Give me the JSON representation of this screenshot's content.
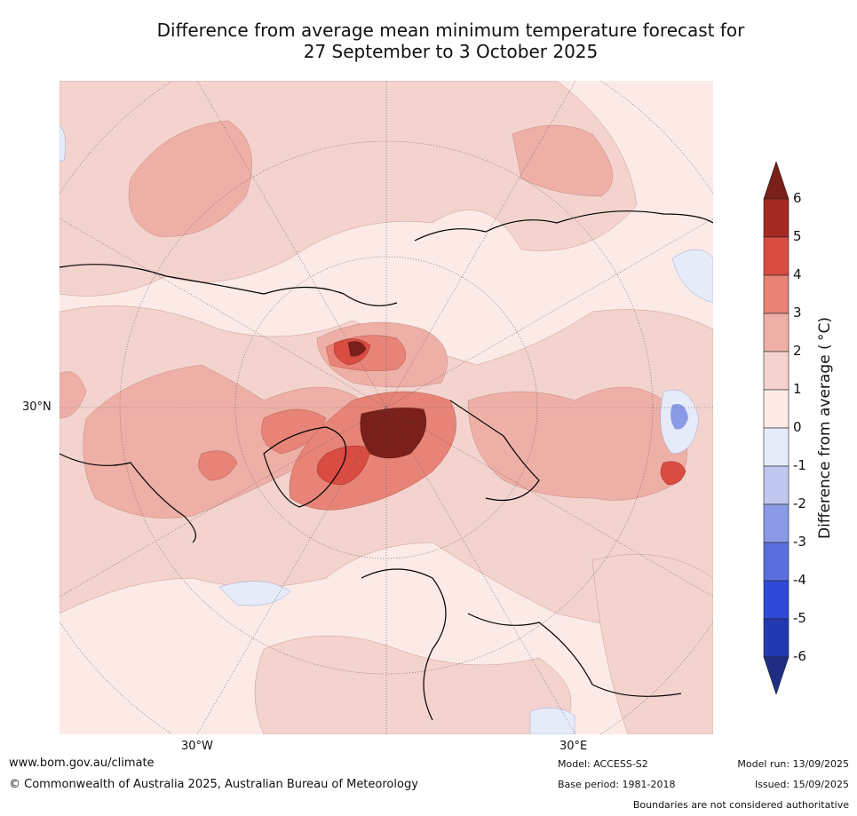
{
  "title_line1": "Difference from average mean minimum temperature forecast for",
  "title_line2": "27 September to 3 October 2025",
  "map": {
    "lat_label": "30°N",
    "lon_labels": [
      "30°W",
      "30°E"
    ]
  },
  "colorbar": {
    "title": "Difference from average ( °C)",
    "ticks": [
      "6",
      "5",
      "4",
      "3",
      "2",
      "1",
      "0",
      "-1",
      "-2",
      "-3",
      "-4",
      "-5",
      "-6"
    ],
    "colors": [
      "#a52a24",
      "#d84c42",
      "#e78477",
      "#eeb0a6",
      "#f4d3ce",
      "#fbeae6",
      "#e6ebfa",
      "#c0c8f0",
      "#8b9ae6",
      "#5a6fdd",
      "#2e4ad6",
      "#233ab0"
    ],
    "extend_high": "#7a1f1a",
    "extend_low": "#1f2e85"
  },
  "footer": {
    "url": "www.bom.gov.au/climate",
    "copyright": "© Commonwealth of Australia 2025, Australian Bureau of Meteorology",
    "model": "Model: ACCESS-S2",
    "base_period": "Base period: 1981-2018",
    "model_run": "Model run: 13/09/2025",
    "issued": "Issued: 15/09/2025",
    "disclaimer": "Boundaries are not considered authoritative"
  }
}
